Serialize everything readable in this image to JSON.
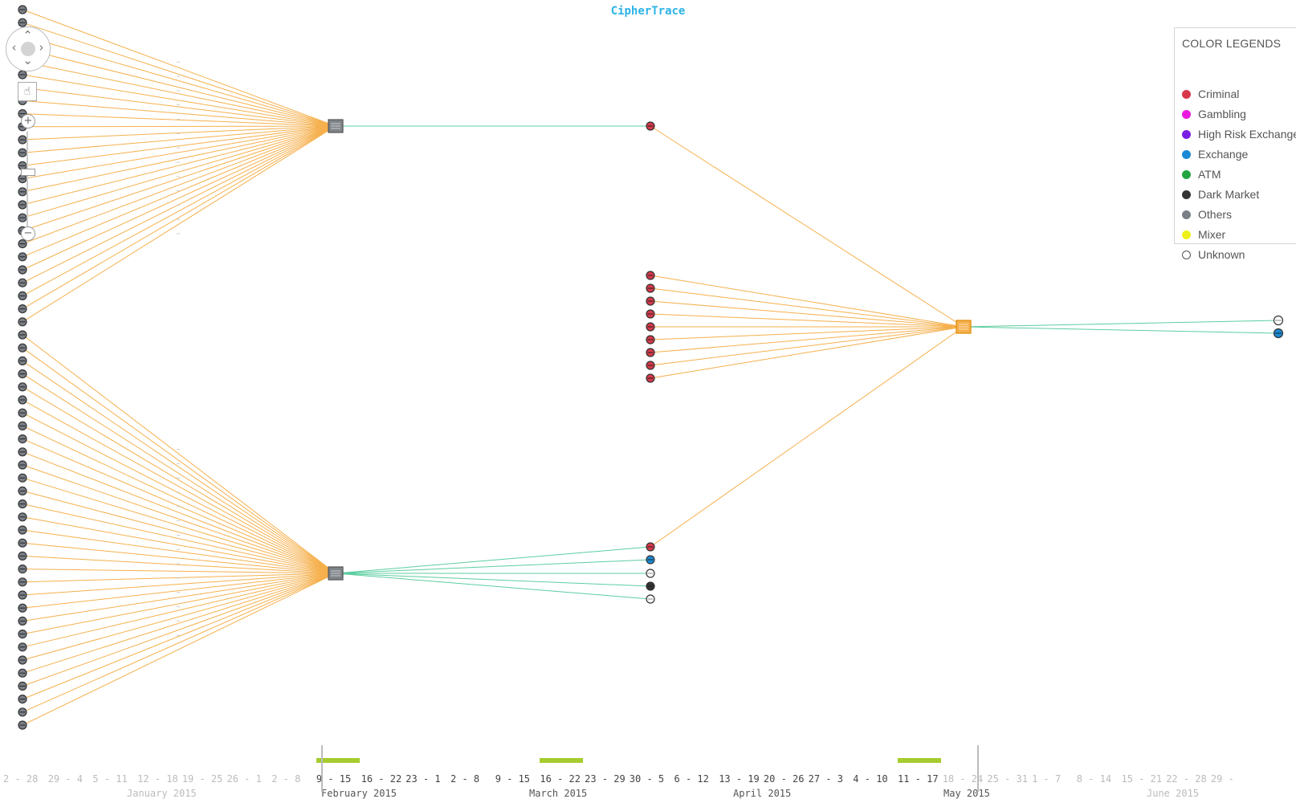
{
  "app": {
    "title": "CipherTrace"
  },
  "legend": {
    "title": "COLOR LEGENDS",
    "items": [
      {
        "label": "Criminal",
        "color": "#d7394a"
      },
      {
        "label": "Gambling",
        "color": "#ea1ae0"
      },
      {
        "label": "High Risk Exchange",
        "color": "#7a1ee2"
      },
      {
        "label": "Exchange",
        "color": "#1a8ad4"
      },
      {
        "label": "ATM",
        "color": "#22a540"
      },
      {
        "label": "Dark Market",
        "color": "#333333"
      },
      {
        "label": "Others",
        "color": "#7a7f87"
      },
      {
        "label": "Mixer",
        "color": "#eef01a"
      },
      {
        "label": "Unknown",
        "color": "#ffffff"
      }
    ]
  },
  "controls": {
    "arrows": {
      "up": "⌃",
      "down": "⌄",
      "left": "‹",
      "right": "›"
    },
    "pan_icon": "☝",
    "zoom_in": "+",
    "zoom_out": "−"
  },
  "graph": {
    "edge_colors": {
      "input": "#f5b04d",
      "output": "#5ccda0"
    },
    "left_column_node_count": 56,
    "hubs": [
      {
        "name": "wallet-hub-top",
        "type": "Others"
      },
      {
        "name": "wallet-hub-bottom",
        "type": "Others"
      },
      {
        "name": "wallet-hub-right",
        "type": "Mixer-highlighted"
      }
    ],
    "middle_cluster_types": [
      "Criminal",
      "Criminal",
      "Criminal",
      "Criminal",
      "Criminal",
      "Criminal",
      "Criminal",
      "Criminal",
      "Criminal"
    ],
    "bottom_group_types": [
      "Criminal",
      "Exchange",
      "Unknown",
      "Dark Market",
      "Unknown"
    ],
    "right_outputs": [
      "Unknown",
      "Exchange"
    ]
  },
  "timeline": {
    "weeks": [
      {
        "label": "2 - 28",
        "dim": true
      },
      {
        "label": "29 - 4",
        "dim": true
      },
      {
        "label": "5 - 11",
        "dim": true
      },
      {
        "label": "12 - 18",
        "dim": true
      },
      {
        "label": "19 - 25",
        "dim": true
      },
      {
        "label": "26 - 1",
        "dim": true
      },
      {
        "label": "2 - 8",
        "dim": true
      },
      {
        "label": "9 - 15",
        "dim": false
      },
      {
        "label": "16 - 22",
        "dim": false
      },
      {
        "label": "23 - 1",
        "dim": false
      },
      {
        "label": "2 - 8",
        "dim": false
      },
      {
        "label": "9 - 15",
        "dim": false
      },
      {
        "label": "16 - 22",
        "dim": false
      },
      {
        "label": "23 - 29",
        "dim": false
      },
      {
        "label": "30 - 5",
        "dim": false
      },
      {
        "label": "6 - 12",
        "dim": false
      },
      {
        "label": "13 - 19",
        "dim": false
      },
      {
        "label": "20 - 26",
        "dim": false
      },
      {
        "label": "27 - 3",
        "dim": false
      },
      {
        "label": "4 - 10",
        "dim": false
      },
      {
        "label": "11 - 17",
        "dim": false
      },
      {
        "label": "18 - 24",
        "dim": true
      },
      {
        "label": "25 - 31",
        "dim": true
      },
      {
        "label": "1 - 7",
        "dim": true
      },
      {
        "label": "8 - 14",
        "dim": true
      },
      {
        "label": "15 - 21",
        "dim": true
      },
      {
        "label": "22 - 28",
        "dim": true
      },
      {
        "label": "29 -",
        "dim": true
      }
    ],
    "months": [
      {
        "label": "January 2015",
        "dim": true
      },
      {
        "label": "February 2015",
        "dim": false
      },
      {
        "label": "March 2015",
        "dim": false
      },
      {
        "label": "April 2015",
        "dim": false
      },
      {
        "label": "May 2015",
        "dim": false
      },
      {
        "label": "June 2015",
        "dim": true
      }
    ],
    "highlighted_weeks": [
      "9 - 15",
      "16 - 22",
      "11 - 17"
    ]
  }
}
